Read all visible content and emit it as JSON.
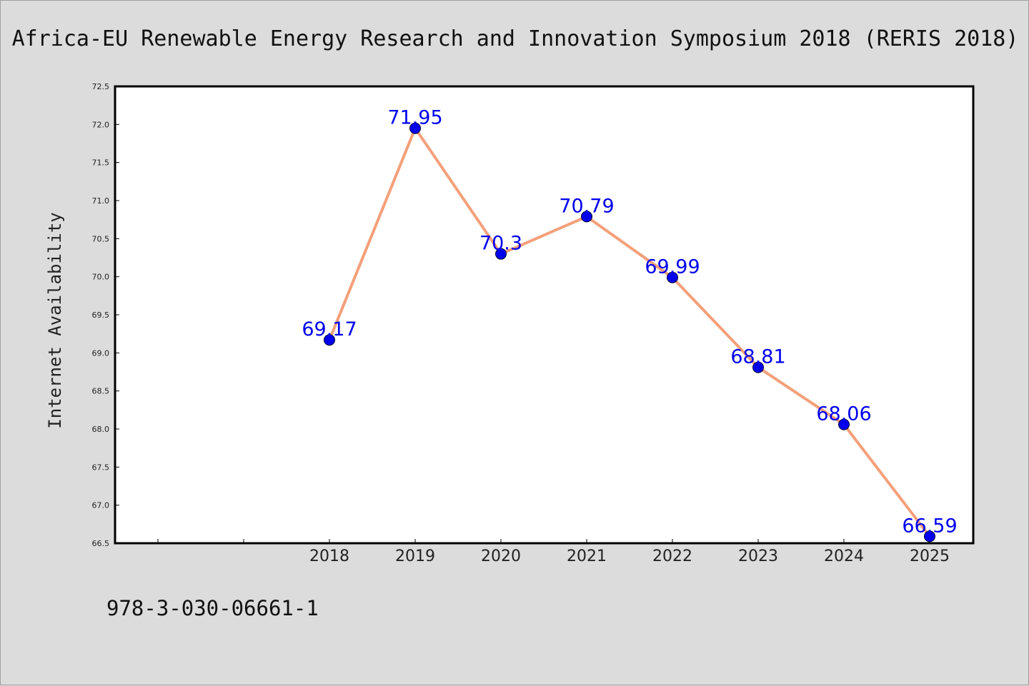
{
  "title": "Africa-EU Renewable Energy Research and Innovation Symposium 2018 (RERIS 2018)",
  "footer_code": "978-3-030-06661-1",
  "colors": {
    "background": "#dcdcdc",
    "plot_background": "#ffffff",
    "line": "#f4a07a",
    "marker": "#0000ee",
    "data_label": "#0000ee"
  },
  "chart_data": {
    "type": "line",
    "ylabel": "Internet Availability",
    "xlabel": "",
    "categories": [
      "2018",
      "2019",
      "2020",
      "2021",
      "2022",
      "2023",
      "2024",
      "2025"
    ],
    "values": [
      69.17,
      71.95,
      70.3,
      70.79,
      69.99,
      68.81,
      68.06,
      66.59
    ],
    "data_labels": [
      "69.17",
      "71.95",
      "70.3",
      "70.79",
      "69.99",
      "68.81",
      "68.06",
      "66.59"
    ],
    "ylim": [
      66.5,
      72.5
    ],
    "yticks": [
      "66.5",
      "67.0",
      "67.5",
      "68.0",
      "68.5",
      "69.0",
      "69.5",
      "70.0",
      "70.5",
      "71.0",
      "71.5",
      "72.0",
      "72.5"
    ],
    "grid": false,
    "legend": "none"
  }
}
